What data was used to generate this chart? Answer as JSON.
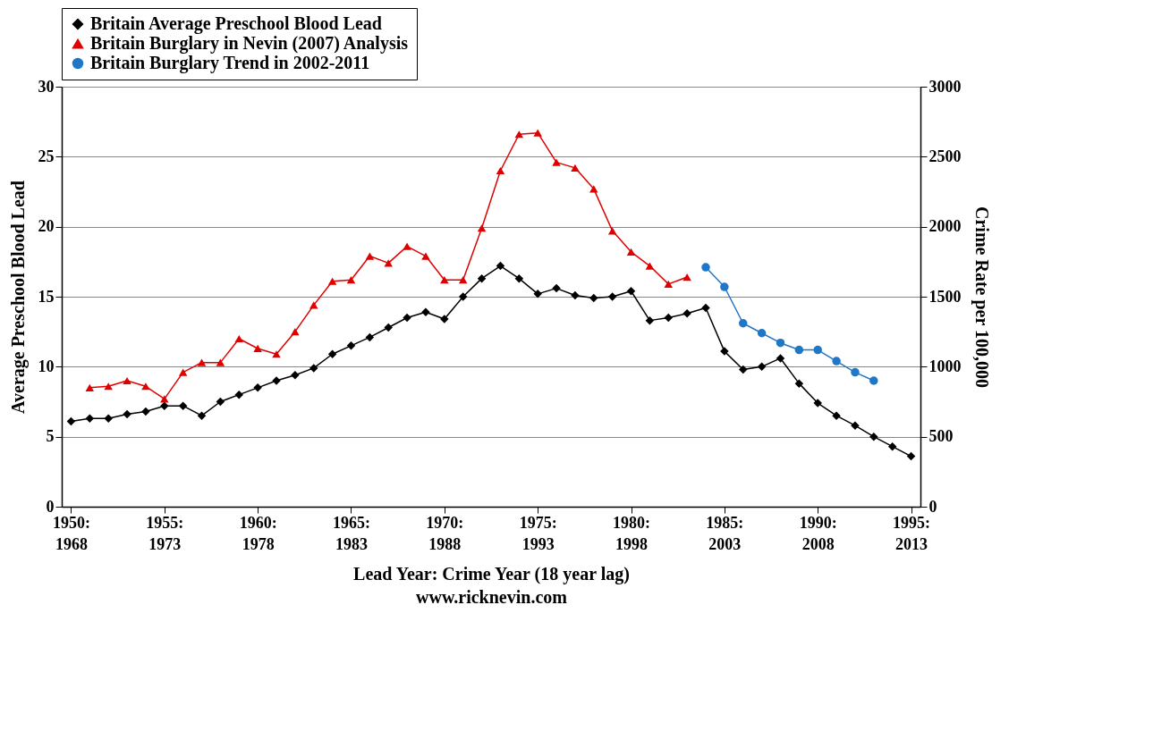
{
  "chart_data": {
    "type": "line",
    "xlabel": "Lead Year: Crime Year (18 year lag)",
    "ylabel": "Average Preschool Blood Lead",
    "y2label": "Crime Rate per 100,000",
    "annotations": [
      "www.ricknevin.com"
    ],
    "categories": [
      "1950:\n1968",
      null,
      null,
      null,
      null,
      "1955:\n1973",
      null,
      null,
      null,
      null,
      "1960:\n1978",
      null,
      null,
      null,
      null,
      "1965:\n1983",
      null,
      null,
      null,
      null,
      "1970:\n1988",
      null,
      null,
      null,
      null,
      "1975:\n1993",
      null,
      null,
      null,
      null,
      "1980:\n1998",
      null,
      null,
      null,
      null,
      "1985:\n2003",
      null,
      null,
      null,
      null,
      "1990:\n2008",
      null,
      null,
      null,
      null,
      "1995:\n2013"
    ],
    "ylim": [
      0,
      30
    ],
    "yticks": [
      0,
      5,
      10,
      15,
      20,
      25,
      30
    ],
    "y2lim": [
      0,
      3000
    ],
    "y2ticks": [
      0,
      500,
      1000,
      1500,
      2000,
      2500,
      3000
    ],
    "grid": "y",
    "legend": "top",
    "line_style": "solid",
    "series": [
      {
        "name": "Britain Average Preschool Blood Lead",
        "color": "#000000",
        "marker": "diamond",
        "values": [
          6.1,
          6.3,
          6.3,
          6.6,
          6.8,
          7.2,
          7.2,
          6.5,
          7.5,
          8.0,
          8.5,
          9.0,
          9.4,
          9.9,
          10.9,
          11.5,
          12.1,
          12.8,
          13.5,
          13.9,
          13.4,
          15.0,
          16.3,
          17.2,
          16.3,
          15.2,
          15.6,
          15.1,
          14.9,
          15.0,
          15.4,
          13.3,
          13.5,
          13.8,
          14.2,
          11.1,
          9.8,
          10.0,
          10.6,
          8.8,
          7.4,
          6.5,
          5.8,
          5.0,
          4.3,
          3.6
        ]
      },
      {
        "name": "Britain Burglary in Nevin (2007) Analysis",
        "color": "#e00000",
        "marker": "triangle",
        "axis": "y2",
        "values": [
          null,
          850,
          860,
          900,
          860,
          770,
          960,
          1030,
          1030,
          1200,
          1130,
          1090,
          1250,
          1440,
          1610,
          1620,
          1790,
          1740,
          1860,
          1790,
          1620,
          1620,
          1990,
          2400,
          2660,
          2670,
          2460,
          2420,
          2270,
          1970,
          1820,
          1720,
          1590,
          1640,
          null,
          null,
          null,
          null,
          null,
          null,
          null,
          null,
          null,
          null,
          null,
          null
        ]
      },
      {
        "name": "Britain Burglary Trend in 2002-2011",
        "color": "#1f77c8",
        "marker": "circle",
        "axis": "y2",
        "values": [
          null,
          null,
          null,
          null,
          null,
          null,
          null,
          null,
          null,
          null,
          null,
          null,
          null,
          null,
          null,
          null,
          null,
          null,
          null,
          null,
          null,
          null,
          null,
          null,
          null,
          null,
          null,
          null,
          null,
          null,
          null,
          null,
          null,
          null,
          1710,
          1570,
          1310,
          1240,
          1170,
          1120,
          1120,
          1040,
          960,
          900,
          null,
          null
        ]
      }
    ]
  }
}
